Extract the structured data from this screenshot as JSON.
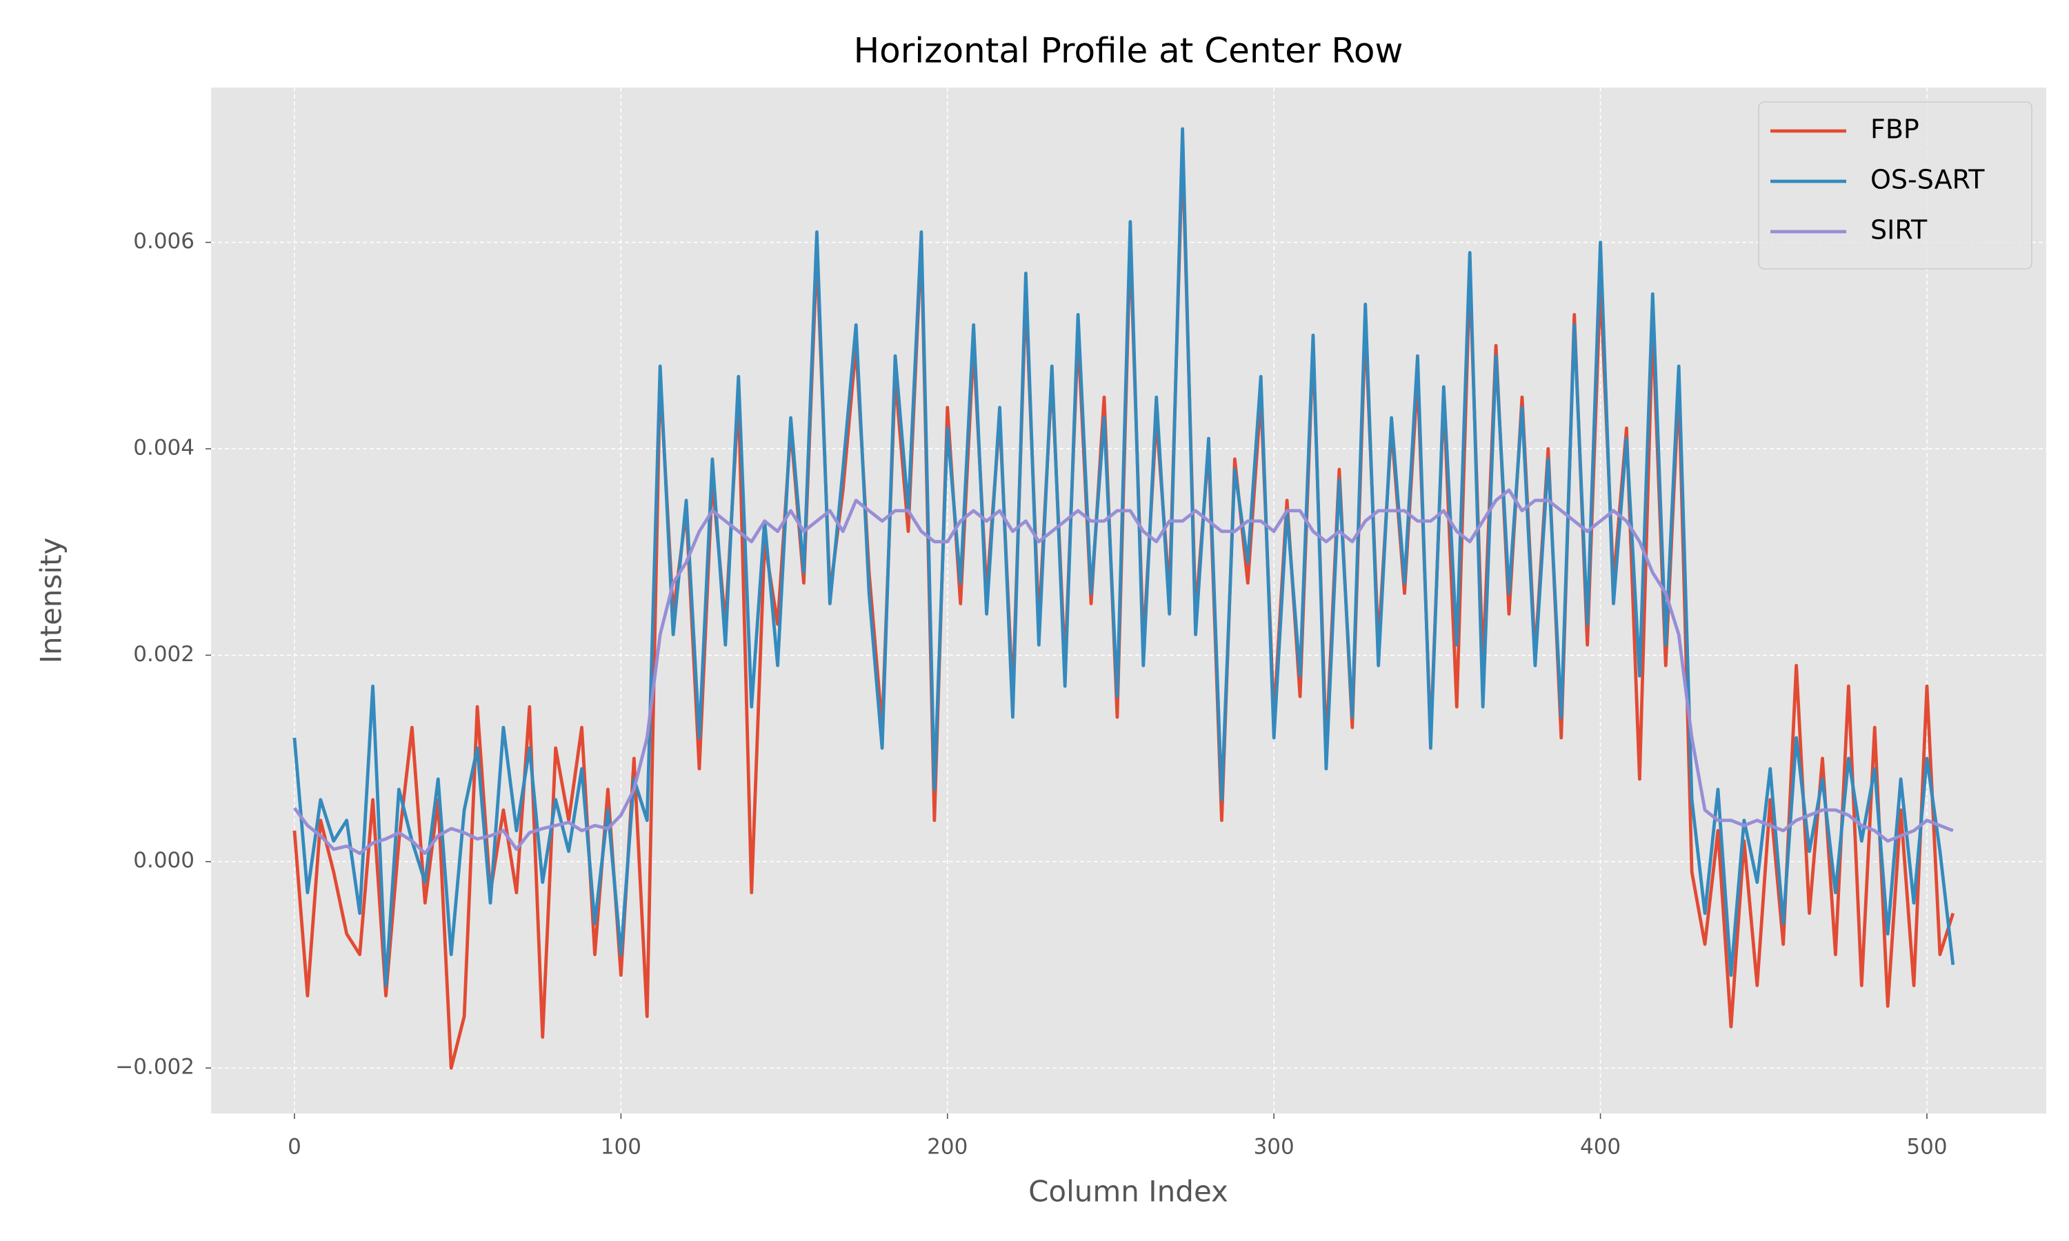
{
  "chart_data": {
    "type": "line",
    "title": "Horizontal Profile at Center Row",
    "x_label": "Column Index",
    "y_label": "Intensity",
    "xlim": [
      -25.55,
      536.55
    ],
    "ylim": [
      -0.00244,
      0.0075
    ],
    "xticks": [
      0,
      100,
      200,
      300,
      400,
      500
    ],
    "yticks": [
      {
        "value": -0.002,
        "label": "−0.002"
      },
      {
        "value": 0,
        "label": "0.000"
      },
      {
        "value": 0.002,
        "label": "0.002"
      },
      {
        "value": 0.004,
        "label": "0.004"
      },
      {
        "value": 0.006,
        "label": "0.006"
      }
    ],
    "grid": true,
    "legend": "upper right",
    "x": [
      0,
      4,
      8,
      12,
      16,
      20,
      24,
      28,
      32,
      36,
      40,
      44,
      48,
      52,
      56,
      60,
      64,
      68,
      72,
      76,
      80,
      84,
      88,
      92,
      96,
      100,
      104,
      108,
      112,
      116,
      120,
      124,
      128,
      132,
      136,
      140,
      144,
      148,
      152,
      156,
      160,
      164,
      168,
      172,
      176,
      180,
      184,
      188,
      192,
      196,
      200,
      204,
      208,
      212,
      216,
      220,
      224,
      228,
      232,
      236,
      240,
      244,
      248,
      252,
      256,
      260,
      264,
      268,
      272,
      276,
      280,
      284,
      288,
      292,
      296,
      300,
      304,
      308,
      312,
      316,
      320,
      324,
      328,
      332,
      336,
      340,
      344,
      348,
      352,
      356,
      360,
      364,
      368,
      372,
      376,
      380,
      384,
      388,
      392,
      396,
      400,
      404,
      408,
      412,
      416,
      420,
      424,
      428,
      432,
      436,
      440,
      444,
      448,
      452,
      456,
      460,
      464,
      468,
      472,
      476,
      480,
      484,
      488,
      492,
      496,
      500,
      504,
      508
    ],
    "series": [
      {
        "name": "FBP",
        "color": "#E24A33",
        "values": [
          0.0003,
          -0.0013,
          0.0004,
          -0.0001,
          -0.0007,
          -0.0009,
          0.0006,
          -0.0013,
          0.0002,
          0.0013,
          -0.0004,
          0.0006,
          -0.002,
          -0.0015,
          0.0015,
          -0.0003,
          0.0005,
          -0.0003,
          0.0015,
          -0.0017,
          0.0011,
          0.0004,
          0.0013,
          -0.0009,
          0.0007,
          -0.0011,
          0.001,
          -0.0015,
          0.0047,
          0.0024,
          0.0034,
          0.0009,
          0.0037,
          0.0023,
          0.0045,
          -0.0003,
          0.0031,
          0.0023,
          0.0042,
          0.0027,
          0.0059,
          0.0026,
          0.0036,
          0.005,
          0.0028,
          0.0013,
          0.0047,
          0.0032,
          0.006,
          0.0004,
          0.0044,
          0.0025,
          0.005,
          0.0026,
          0.0043,
          0.0016,
          0.0055,
          0.0023,
          0.0047,
          0.0019,
          0.0051,
          0.0025,
          0.0045,
          0.0014,
          0.006,
          0.0021,
          0.0043,
          0.0026,
          0.0069,
          0.0024,
          0.004,
          0.0004,
          0.0039,
          0.0027,
          0.0045,
          0.0014,
          0.0035,
          0.0016,
          0.005,
          0.0011,
          0.0038,
          0.0013,
          0.0052,
          0.0021,
          0.0042,
          0.0026,
          0.0047,
          0.0012,
          0.0045,
          0.0015,
          0.0057,
          0.0019,
          0.005,
          0.0024,
          0.0045,
          0.002,
          0.004,
          0.0012,
          0.0053,
          0.0021,
          0.0056,
          0.0027,
          0.0042,
          0.0008,
          0.0052,
          0.0019,
          0.0046,
          -0.0001,
          -0.0008,
          0.0003,
          -0.0016,
          0.0002,
          -0.0012,
          0.0006,
          -0.0008,
          0.0019,
          -0.0005,
          0.001,
          -0.0009,
          0.0017,
          -0.0012,
          0.0013,
          -0.0014,
          0.0005,
          -0.0012,
          0.0017,
          -0.0009,
          -0.0005
        ]
      },
      {
        "name": "OS-SART",
        "color": "#348ABD",
        "values": [
          0.0012,
          -0.0003,
          0.0006,
          0.0002,
          0.0004,
          -0.0005,
          0.0017,
          -0.0012,
          0.0007,
          0.0002,
          -0.0002,
          0.0008,
          -0.0009,
          0.0005,
          0.0011,
          -0.0004,
          0.0013,
          0.0003,
          0.0011,
          -0.0002,
          0.0006,
          0.0001,
          0.0009,
          -0.0006,
          0.0005,
          -0.0009,
          0.0008,
          0.0004,
          0.0048,
          0.0022,
          0.0035,
          0.0012,
          0.0039,
          0.0021,
          0.0047,
          0.0015,
          0.0033,
          0.0019,
          0.0043,
          0.0028,
          0.0061,
          0.0025,
          0.0038,
          0.0052,
          0.0026,
          0.0011,
          0.0049,
          0.0034,
          0.0061,
          0.0007,
          0.0042,
          0.0027,
          0.0052,
          0.0024,
          0.0044,
          0.0014,
          0.0057,
          0.0021,
          0.0048,
          0.0017,
          0.0053,
          0.0026,
          0.0043,
          0.0016,
          0.0062,
          0.0019,
          0.0045,
          0.0024,
          0.0071,
          0.0022,
          0.0041,
          0.0006,
          0.0038,
          0.0029,
          0.0047,
          0.0012,
          0.0034,
          0.0018,
          0.0051,
          0.0009,
          0.0037,
          0.0014,
          0.0054,
          0.0019,
          0.0043,
          0.0027,
          0.0049,
          0.0011,
          0.0046,
          0.0021,
          0.0059,
          0.0015,
          0.0049,
          0.0026,
          0.0044,
          0.0019,
          0.0039,
          0.0014,
          0.0052,
          0.0023,
          0.006,
          0.0025,
          0.0041,
          0.0018,
          0.0055,
          0.0021,
          0.0048,
          0.0006,
          -0.0005,
          0.0007,
          -0.0011,
          0.0004,
          -0.0002,
          0.0009,
          -0.0006,
          0.0012,
          0.0001,
          0.0008,
          -0.0003,
          0.001,
          0.0002,
          0.0009,
          -0.0007,
          0.0008,
          -0.0004,
          0.001,
          0.0001,
          -0.001
        ]
      },
      {
        "name": "SIRT",
        "color": "#988ED5",
        "values": [
          0.00052,
          0.00035,
          0.00025,
          0.00012,
          0.00015,
          8e-05,
          0.00018,
          0.00022,
          0.00028,
          0.0002,
          8e-05,
          0.00025,
          0.00032,
          0.00028,
          0.00022,
          0.00025,
          0.0003,
          0.00012,
          0.00028,
          0.00032,
          0.00035,
          0.00038,
          0.0003,
          0.00035,
          0.00032,
          0.00045,
          0.0007,
          0.0012,
          0.0022,
          0.0027,
          0.0029,
          0.0032,
          0.0034,
          0.0033,
          0.0032,
          0.0031,
          0.0033,
          0.0032,
          0.0034,
          0.0032,
          0.0033,
          0.0034,
          0.0032,
          0.0035,
          0.0034,
          0.0033,
          0.0034,
          0.0034,
          0.0032,
          0.0031,
          0.0031,
          0.0033,
          0.0034,
          0.0033,
          0.0034,
          0.0032,
          0.0033,
          0.0031,
          0.0032,
          0.0033,
          0.0034,
          0.0033,
          0.0033,
          0.0034,
          0.0034,
          0.0032,
          0.0031,
          0.0033,
          0.0033,
          0.0034,
          0.0033,
          0.0032,
          0.0032,
          0.0033,
          0.0033,
          0.0032,
          0.0034,
          0.0034,
          0.0032,
          0.0031,
          0.0032,
          0.0031,
          0.0033,
          0.0034,
          0.0034,
          0.0034,
          0.0033,
          0.0033,
          0.0034,
          0.0032,
          0.0031,
          0.0033,
          0.0035,
          0.0036,
          0.0034,
          0.0035,
          0.0035,
          0.0034,
          0.0033,
          0.0032,
          0.0033,
          0.0034,
          0.0033,
          0.0031,
          0.0028,
          0.0026,
          0.0022,
          0.0012,
          0.0005,
          0.0004,
          0.0004,
          0.00035,
          0.0004,
          0.00035,
          0.0003,
          0.0004,
          0.00045,
          0.0005,
          0.0005,
          0.00045,
          0.00035,
          0.0003,
          0.0002,
          0.00025,
          0.0003,
          0.0004,
          0.00035,
          0.0003
        ]
      }
    ]
  }
}
